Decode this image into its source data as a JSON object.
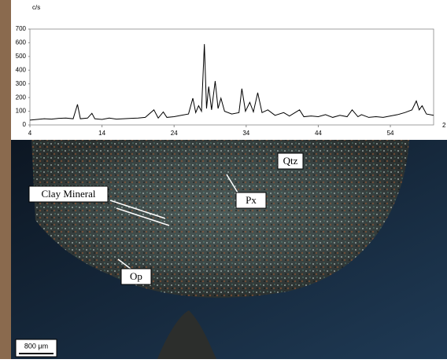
{
  "chart_data": {
    "type": "line",
    "y_label": "c/s",
    "x_label": "2",
    "xlim": [
      4,
      60
    ],
    "xticks": [
      4,
      14,
      24,
      34,
      44,
      54
    ],
    "ylim": [
      0,
      700
    ],
    "yticks": [
      0,
      100,
      200,
      300,
      400,
      500,
      600,
      700
    ],
    "series": [
      {
        "color": "#000000",
        "x": [
          4,
          5,
          6,
          7,
          8,
          9,
          10,
          10.6,
          11,
          12,
          12.6,
          13,
          14,
          15,
          16,
          17,
          18,
          19,
          20,
          21.2,
          21.8,
          22.5,
          23,
          24,
          25,
          26,
          26.6,
          27,
          27.4,
          27.8,
          28.2,
          28.5,
          28.8,
          29.2,
          29.7,
          30.1,
          30.5,
          31,
          32,
          33,
          33.4,
          33.9,
          34.5,
          35,
          35.6,
          36.2,
          37,
          38,
          39.2,
          40,
          41.4,
          42,
          43,
          44,
          45,
          46,
          47,
          48,
          48.7,
          49.5,
          50,
          51,
          52,
          53,
          54,
          55,
          56,
          57,
          57.6,
          58,
          58.4,
          59,
          60
        ],
        "values": [
          35,
          40,
          45,
          42,
          48,
          50,
          45,
          150,
          45,
          50,
          85,
          45,
          40,
          50,
          42,
          45,
          48,
          50,
          55,
          110,
          50,
          95,
          55,
          60,
          70,
          80,
          195,
          90,
          140,
          100,
          590,
          120,
          280,
          110,
          320,
          120,
          195,
          100,
          80,
          90,
          265,
          100,
          165,
          95,
          235,
          90,
          110,
          70,
          90,
          65,
          110,
          60,
          65,
          60,
          75,
          55,
          70,
          60,
          110,
          60,
          75,
          55,
          60,
          55,
          65,
          75,
          90,
          110,
          175,
          110,
          140,
          80,
          70
        ]
      }
    ]
  },
  "micrograph": {
    "labels": [
      "Qtz",
      "Px",
      "Clay Mineral",
      "Op"
    ],
    "scale_bar": "800 μm"
  }
}
